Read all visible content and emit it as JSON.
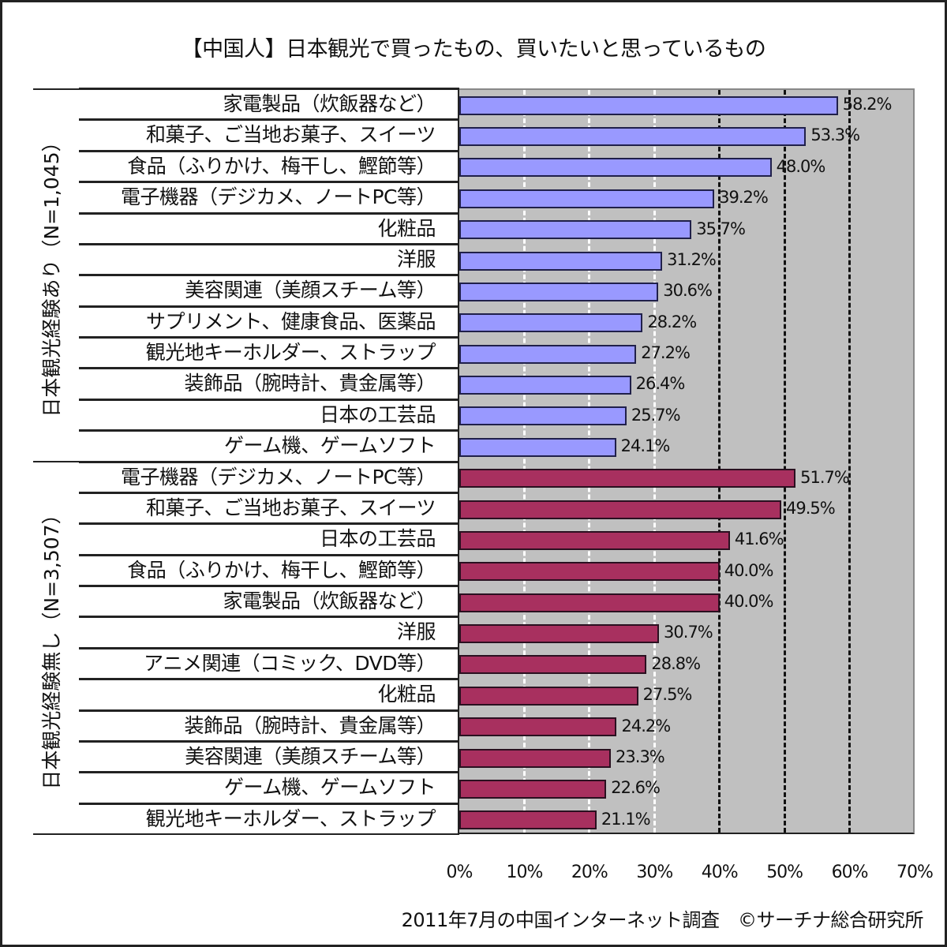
{
  "title": "【中国人】日本観光で買ったもの、買いたいと思っているもの",
  "footer": "2011年7月の中国インターネット調査　©サーチナ総合研究所",
  "colors": {
    "series1": "#9999ff",
    "series2": "#a8305f",
    "plot_bg": "#c0c0c0"
  },
  "x_axis": {
    "ticks": [
      "0%",
      "10%",
      "20%",
      "30%",
      "40%",
      "50%",
      "60%",
      "70%"
    ]
  },
  "groups": [
    {
      "label": "日本観光経験あり（N=1,045）"
    },
    {
      "label": "日本観光経験無し（N=3,507）"
    }
  ],
  "chart_data": {
    "type": "bar",
    "orientation": "horizontal",
    "title": "【中国人】日本観光で買ったもの、買いたいと思っているもの",
    "xlabel": "",
    "ylabel": "",
    "xlim": [
      0,
      70
    ],
    "x_ticks": [
      "0%",
      "10%",
      "20%",
      "30%",
      "40%",
      "50%",
      "60%",
      "70%"
    ],
    "grid": true,
    "legend": null,
    "source": "2011年7月の中国インターネット調査　©サーチナ総合研究所",
    "series": [
      {
        "name": "日本観光経験あり（N=1,045）",
        "color": "#9999ff",
        "categories": [
          "家電製品（炊飯器など）",
          "和菓子、ご当地お菓子、スイーツ",
          "食品（ふりかけ、梅干し、鰹節等）",
          "電子機器（デジカメ、ノートPC等）",
          "化粧品",
          "洋服",
          "美容関連（美顔スチーム等）",
          "サプリメント、健康食品、医薬品",
          "観光地キーホルダー、ストラップ",
          "装飾品（腕時計、貴金属等）",
          "日本の工芸品",
          "ゲーム機、ゲームソフト"
        ],
        "values": [
          58.2,
          53.3,
          48.0,
          39.2,
          35.7,
          31.2,
          30.6,
          28.2,
          27.2,
          26.4,
          25.7,
          24.1
        ],
        "labels": [
          "58.2%",
          "53.3%",
          "48.0%",
          "39.2%",
          "35.7%",
          "31.2%",
          "30.6%",
          "28.2%",
          "27.2%",
          "26.4%",
          "25.7%",
          "24.1%"
        ]
      },
      {
        "name": "日本観光経験無し（N=3,507）",
        "color": "#a8305f",
        "categories": [
          "電子機器（デジカメ、ノートPC等）",
          "和菓子、ご当地お菓子、スイーツ",
          "日本の工芸品",
          "食品（ふりかけ、梅干し、鰹節等）",
          "家電製品（炊飯器など）",
          "洋服",
          "アニメ関連（コミック、DVD等）",
          "化粧品",
          "装飾品（腕時計、貴金属等）",
          "美容関連（美顔スチーム等）",
          "ゲーム機、ゲームソフト",
          "観光地キーホルダー、ストラップ"
        ],
        "values": [
          51.7,
          49.5,
          41.6,
          40.0,
          40.0,
          30.7,
          28.8,
          27.5,
          24.2,
          23.3,
          22.6,
          21.1
        ],
        "labels": [
          "51.7%",
          "49.5%",
          "41.6%",
          "40.0%",
          "40.0%",
          "30.7%",
          "28.8%",
          "27.5%",
          "24.2%",
          "23.3%",
          "22.6%",
          "21.1%"
        ]
      }
    ]
  }
}
